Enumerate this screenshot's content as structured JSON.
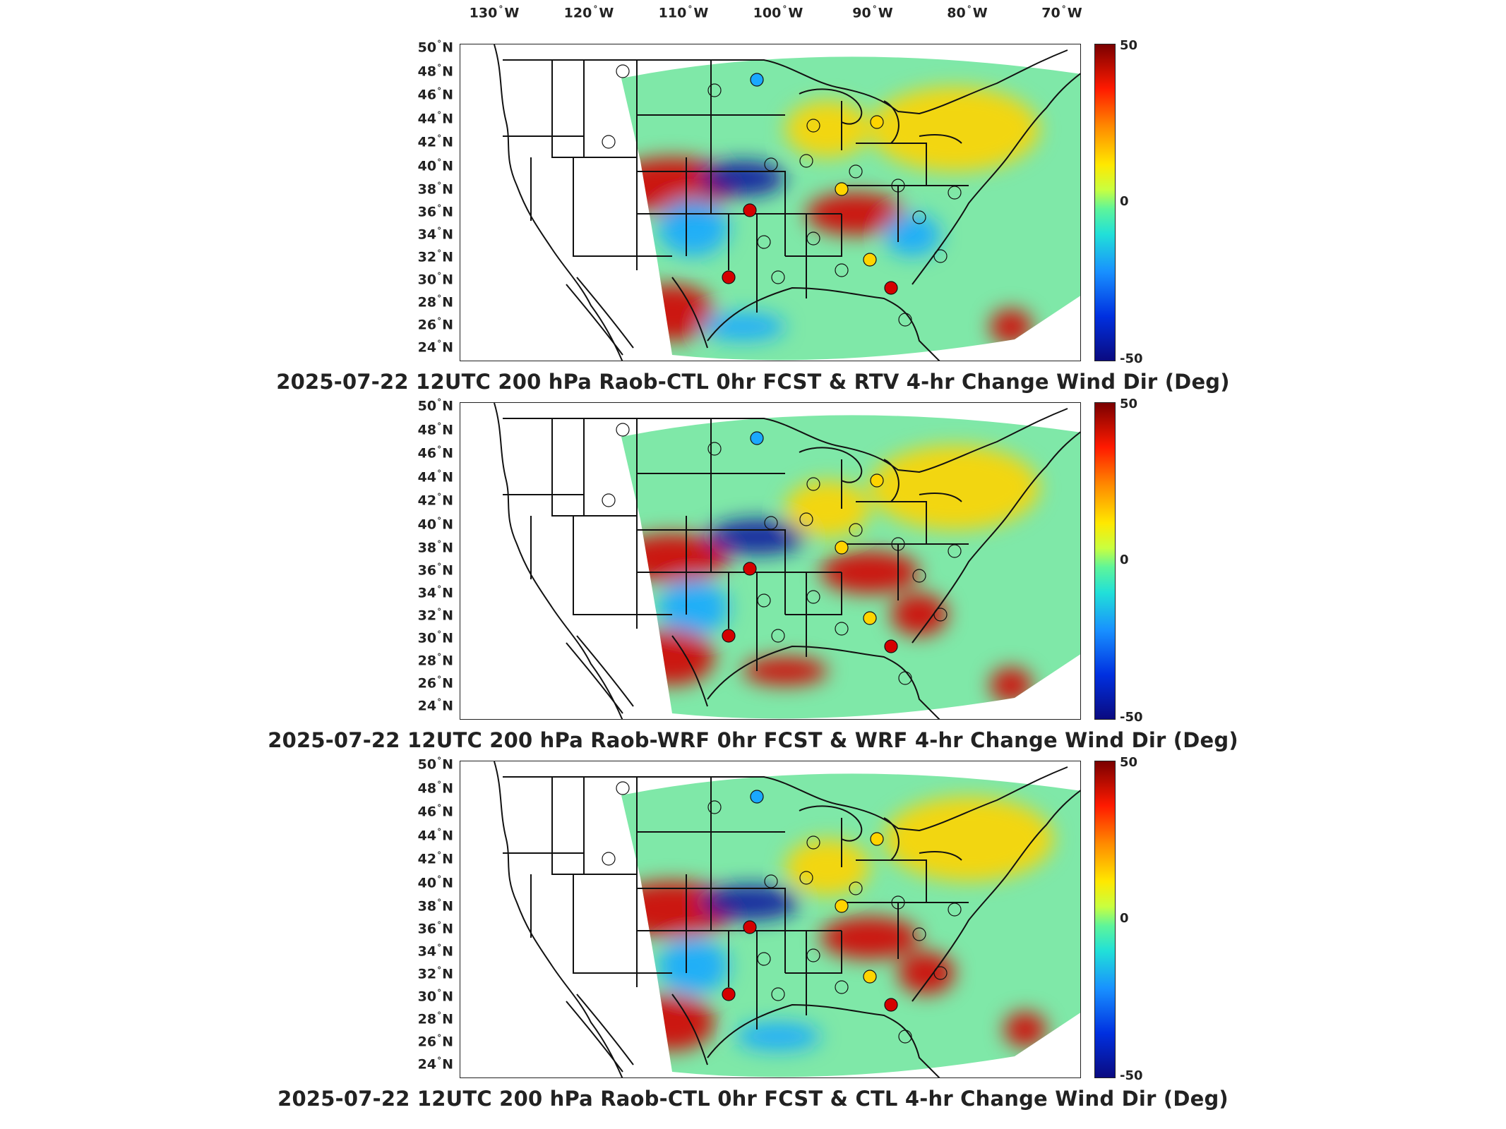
{
  "longitude_labels": [
    {
      "label": "130",
      "hemi": "W"
    },
    {
      "label": "120",
      "hemi": "W"
    },
    {
      "label": "110",
      "hemi": "W"
    },
    {
      "label": "100",
      "hemi": "W"
    },
    {
      "label": "90",
      "hemi": "W"
    },
    {
      "label": "80",
      "hemi": "W"
    },
    {
      "label": "70",
      "hemi": "W"
    }
  ],
  "latitude_labels": [
    "50",
    "48",
    "46",
    "44",
    "42",
    "40",
    "38",
    "36",
    "34",
    "32",
    "30",
    "28",
    "26",
    "24"
  ],
  "latitude_hemi": "N",
  "colorbar": {
    "max": "50",
    "mid": "0",
    "min": "-50"
  },
  "panels": [
    {
      "title": "2025-07-22 12UTC 200 hPa Raob-CTL 0hr FCST & RTV 4-hr Change Wind Dir (Deg)"
    },
    {
      "title": "2025-07-22 12UTC 200 hPa Raob-WRF 0hr FCST & WRF 4-hr Change Wind Dir (Deg)"
    },
    {
      "title": "2025-07-22 12UTC 200 hPa Raob-CTL 0hr FCST & CTL 4-hr Change Wind Dir (Deg)"
    }
  ],
  "colors": {
    "field_base": "#7fe8a8",
    "warm": "#ffd400",
    "hot": "#d40000",
    "cool": "#1aa8ff",
    "cold": "#0a1aa0",
    "outline": "#111111"
  }
}
